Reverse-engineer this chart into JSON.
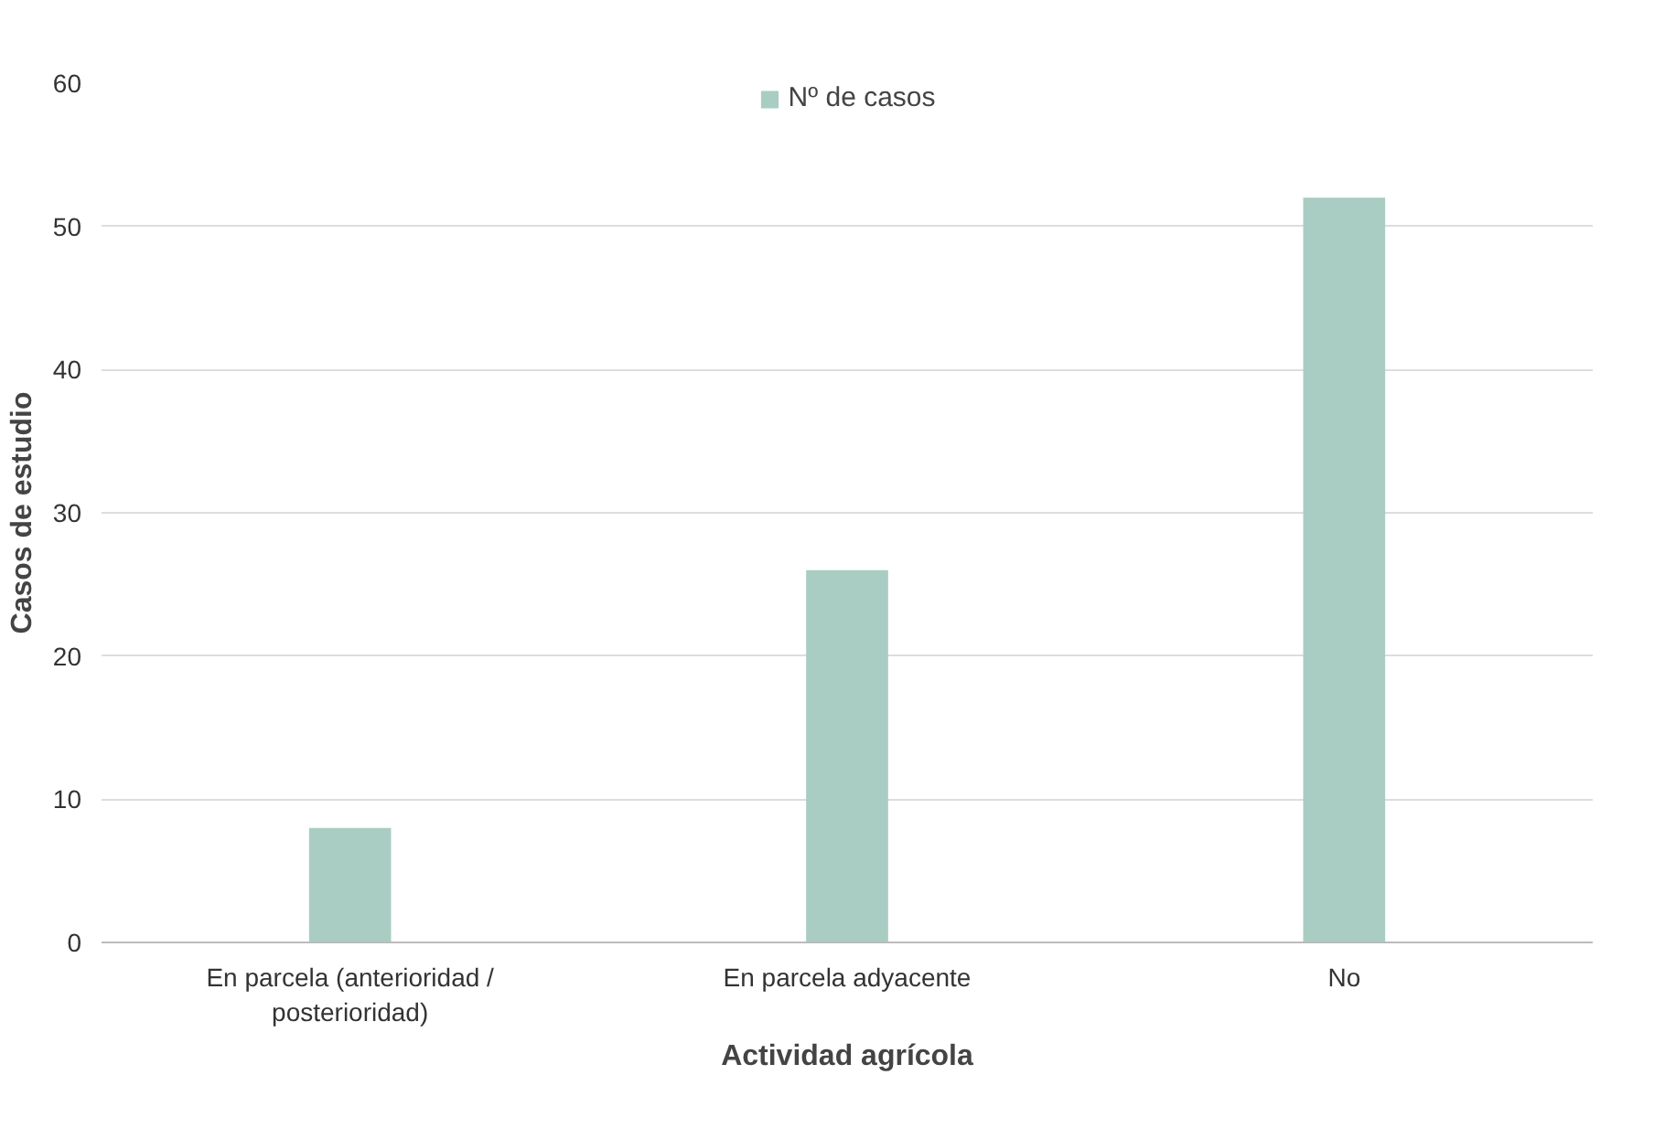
{
  "chart_data": {
    "type": "bar",
    "xlabel": "Actividad agrícola",
    "ylabel": "Casos de estudio",
    "categories": [
      "En parcela (anterioridad / posterioridad)",
      "En parcela adyacente",
      "No"
    ],
    "series": [
      {
        "name": "Nº de casos",
        "color": "#a9cdc2",
        "values": [
          8,
          26,
          52
        ]
      }
    ],
    "ylim": [
      0,
      60
    ],
    "yticks": [
      0,
      10,
      20,
      30,
      40,
      50,
      60
    ],
    "grid": "y",
    "legend": "top"
  }
}
